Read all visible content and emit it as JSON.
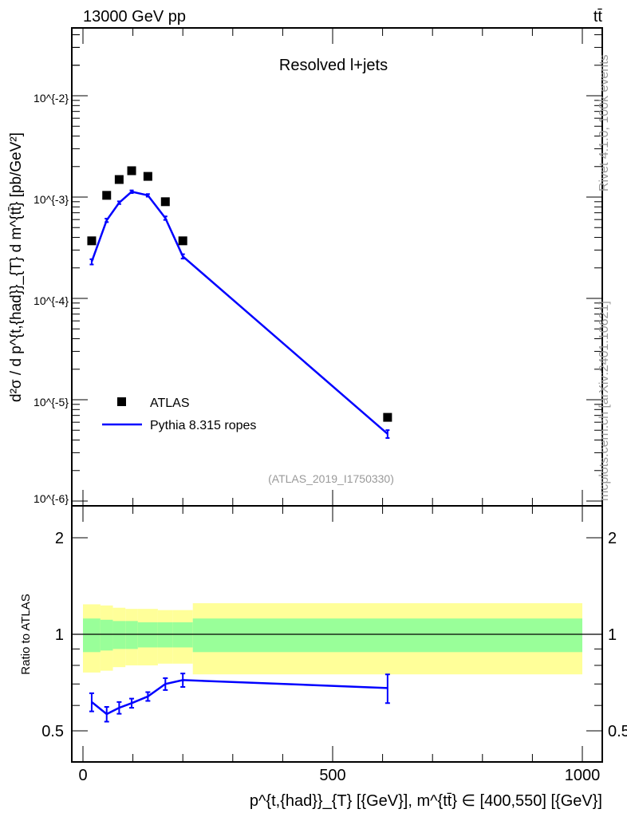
{
  "header": {
    "left": "13000 GeV pp",
    "right": "tt̄"
  },
  "side": {
    "rivet": "Rivet 4.1.0,  100k events",
    "mcplots": "mcplots.cern.ch [arXiv:2401.10621]"
  },
  "chart_data": [
    {
      "type": "scatter",
      "title": "Resolved l+jets",
      "analysis": "(ATLAS_2019_I1750330)",
      "ylabel": "d²σ / d p^{t,{had}}_{T} d m^{tt̄} [pb/GeV²]",
      "yscale": "log",
      "ylim": [
        1e-06,
        0.047
      ],
      "xlim": [
        -22,
        1040
      ],
      "ytick_labels": [
        "10^{-2}",
        "10^{-3}",
        "10^{-4}",
        "10^{-5}",
        "10^{-6}"
      ],
      "bin_edges": [
        0,
        35,
        60,
        85,
        110,
        150,
        180,
        220,
        1000
      ],
      "legend_position": "bottom-left",
      "series": [
        {
          "name": "ATLAS",
          "marker": "square",
          "color": "#000000",
          "x": [
            17.5,
            47.5,
            72.5,
            97.5,
            130,
            165,
            200,
            610
          ],
          "y": [
            0.00037,
            0.00104,
            0.00149,
            0.00182,
            0.0016,
            0.0009,
            0.00037,
            6.7e-06
          ]
        },
        {
          "name": "Pythia 8.315 ropes",
          "marker": "line",
          "color": "#0000ff",
          "x": [
            17.5,
            47.5,
            72.5,
            97.5,
            130,
            165,
            200,
            610
          ],
          "y": [
            0.00023,
            0.00059,
            0.00088,
            0.00113,
            0.00104,
            0.00062,
            0.00026,
            4.6e-06
          ],
          "yerr_rel": [
            0.06,
            0.04,
            0.03,
            0.03,
            0.03,
            0.04,
            0.05,
            0.09
          ]
        }
      ]
    },
    {
      "type": "line",
      "ylabel": "Ratio to ATLAS",
      "yscale": "log",
      "ylim": [
        0.4,
        2.5
      ],
      "xlim": [
        -22,
        1040
      ],
      "xlabel": "p^{t,{had}}_{T} [{GeV}], m^{tt̄} ∈ [400,550] [{GeV}]",
      "xtick_labels": [
        "0",
        "500",
        "1000"
      ],
      "xticks": [
        0,
        500,
        1000
      ],
      "ytick_labels": [
        "0.5",
        "1",
        "2"
      ],
      "yticks": [
        0.5,
        1,
        2
      ],
      "bands": {
        "yellow_hi": [
          1.24,
          1.23,
          1.21,
          1.2,
          1.2,
          1.19,
          1.19,
          1.25
        ],
        "yellow_lo": [
          0.76,
          0.77,
          0.79,
          0.8,
          0.8,
          0.81,
          0.81,
          0.75
        ],
        "green_hi": [
          1.12,
          1.11,
          1.1,
          1.1,
          1.09,
          1.09,
          1.09,
          1.12
        ],
        "green_lo": [
          0.88,
          0.89,
          0.9,
          0.9,
          0.91,
          0.91,
          0.91,
          0.88
        ],
        "yellow_color": "#ffff99",
        "green_color": "#99ff99"
      },
      "series": [
        {
          "name": "Pythia 8.315 ropes",
          "color": "#0000ff",
          "x": [
            17.5,
            47.5,
            72.5,
            97.5,
            130,
            165,
            200,
            610
          ],
          "y": [
            0.615,
            0.564,
            0.59,
            0.61,
            0.64,
            0.7,
            0.72,
            0.68
          ],
          "yerr": [
            0.04,
            0.03,
            0.025,
            0.02,
            0.02,
            0.03,
            0.035,
            0.07
          ]
        }
      ]
    }
  ]
}
